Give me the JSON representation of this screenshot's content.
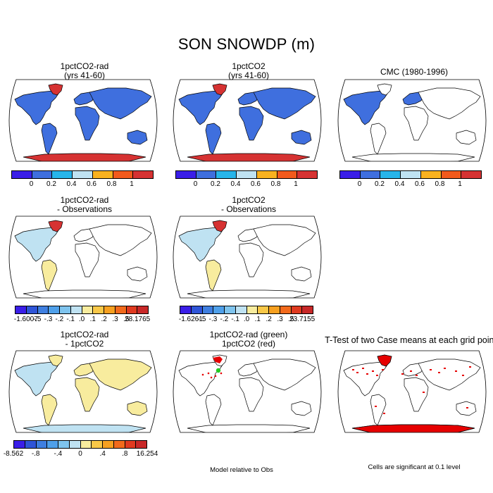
{
  "title": "SON SNOWDP (m)",
  "colors": {
    "land_outline": "#000000",
    "blue_fill": "#3f6fde",
    "pale_blue": "#bfe2f2",
    "pale_yellow": "#f8ec9e",
    "dark_red": "#d63232",
    "red": "#e60000",
    "green": "#22cc22"
  },
  "panels": [
    {
      "title_lines": [
        "1pctCO2-rad",
        "(yrs 41-60)"
      ],
      "style": "abs_full"
    },
    {
      "title_lines": [
        "1pctCO2",
        "(yrs 41-60)"
      ],
      "style": "abs_full"
    },
    {
      "title_lines": [
        "CMC (1980-1996)"
      ],
      "style": "abs_nh"
    },
    {
      "title_lines": [
        "1pctCO2-rad",
        "- Observations"
      ],
      "style": "diff_obs"
    },
    {
      "title_lines": [
        "1pctCO2",
        "- Observations"
      ],
      "style": "diff_obs"
    },
    {
      "title_lines": [
        "1pctCO2-rad",
        "- 1pctCO2"
      ],
      "style": "diff_model"
    },
    {
      "title_lines": [
        "1pctCO2-rad (green)",
        "1pctCO2 (red)"
      ],
      "style": "overlay"
    },
    {
      "title_lines": [
        "T-Test of two Case means at each grid point"
      ],
      "style": "ttest"
    }
  ],
  "colorbars": [
    {
      "colors": [
        "#3a1ee8",
        "#3f6fde",
        "#27b5ea",
        "#bfe2f2",
        "#f9b21f",
        "#f25a1c",
        "#d63232"
      ],
      "labels": [
        "0",
        "0.2",
        "0.4",
        "0.6",
        "0.8",
        "1"
      ]
    },
    {
      "colors": [
        "#3a1ee8",
        "#3f6fde",
        "#27b5ea",
        "#bfe2f2",
        "#f9b21f",
        "#f25a1c",
        "#d63232"
      ],
      "labels": [
        "0",
        "0.2",
        "0.4",
        "0.6",
        "0.8",
        "1"
      ]
    },
    {
      "colors": [
        "#3a1ee8",
        "#3f6fde",
        "#27b5ea",
        "#bfe2f2",
        "#f9b21f",
        "#f25a1c",
        "#d63232"
      ],
      "labels": [
        "0",
        "0.2",
        "0.4",
        "0.6",
        "0.8",
        "1"
      ]
    },
    {
      "colors": [
        "#3a1ee8",
        "#2f55d8",
        "#3f7fe0",
        "#4fa0ea",
        "#7fc4ee",
        "#bfe2f2",
        "#f8ec9e",
        "#f9c848",
        "#f7a020",
        "#f26a1c",
        "#e03a20",
        "#c82828"
      ],
      "labels": [
        "-1.6007",
        "-.5",
        "-.3",
        "-.2",
        "-.1",
        ".0",
        ".1",
        ".2",
        ".3",
        ".5",
        "28.1765"
      ]
    },
    {
      "colors": [
        "#3a1ee8",
        "#2f55d8",
        "#3f7fe0",
        "#4fa0ea",
        "#7fc4ee",
        "#bfe2f2",
        "#f8ec9e",
        "#f9c848",
        "#f7a020",
        "#f26a1c",
        "#e03a20",
        "#c82828"
      ],
      "labels": [
        "-1.6261",
        "-.5",
        "-.3",
        "-.2",
        "-.1",
        ".0",
        ".1",
        ".2",
        ".3",
        ".5",
        "23.7155"
      ]
    },
    {
      "colors": [
        "#3a1ee8",
        "#2f55d8",
        "#3f7fe0",
        "#4fa0ea",
        "#7fc4ee",
        "#bfe2f2",
        "#f8ec9e",
        "#f9c848",
        "#f7a020",
        "#f26a1c",
        "#e03a20",
        "#c82828"
      ],
      "labels": [
        "-8.562",
        "-.8",
        "-.4",
        "0",
        ".4",
        ".8",
        "16.254"
      ]
    }
  ],
  "notes": {
    "model_relative": "Model relative to Obs",
    "significance": "Cells are significant at 0.1 level"
  }
}
